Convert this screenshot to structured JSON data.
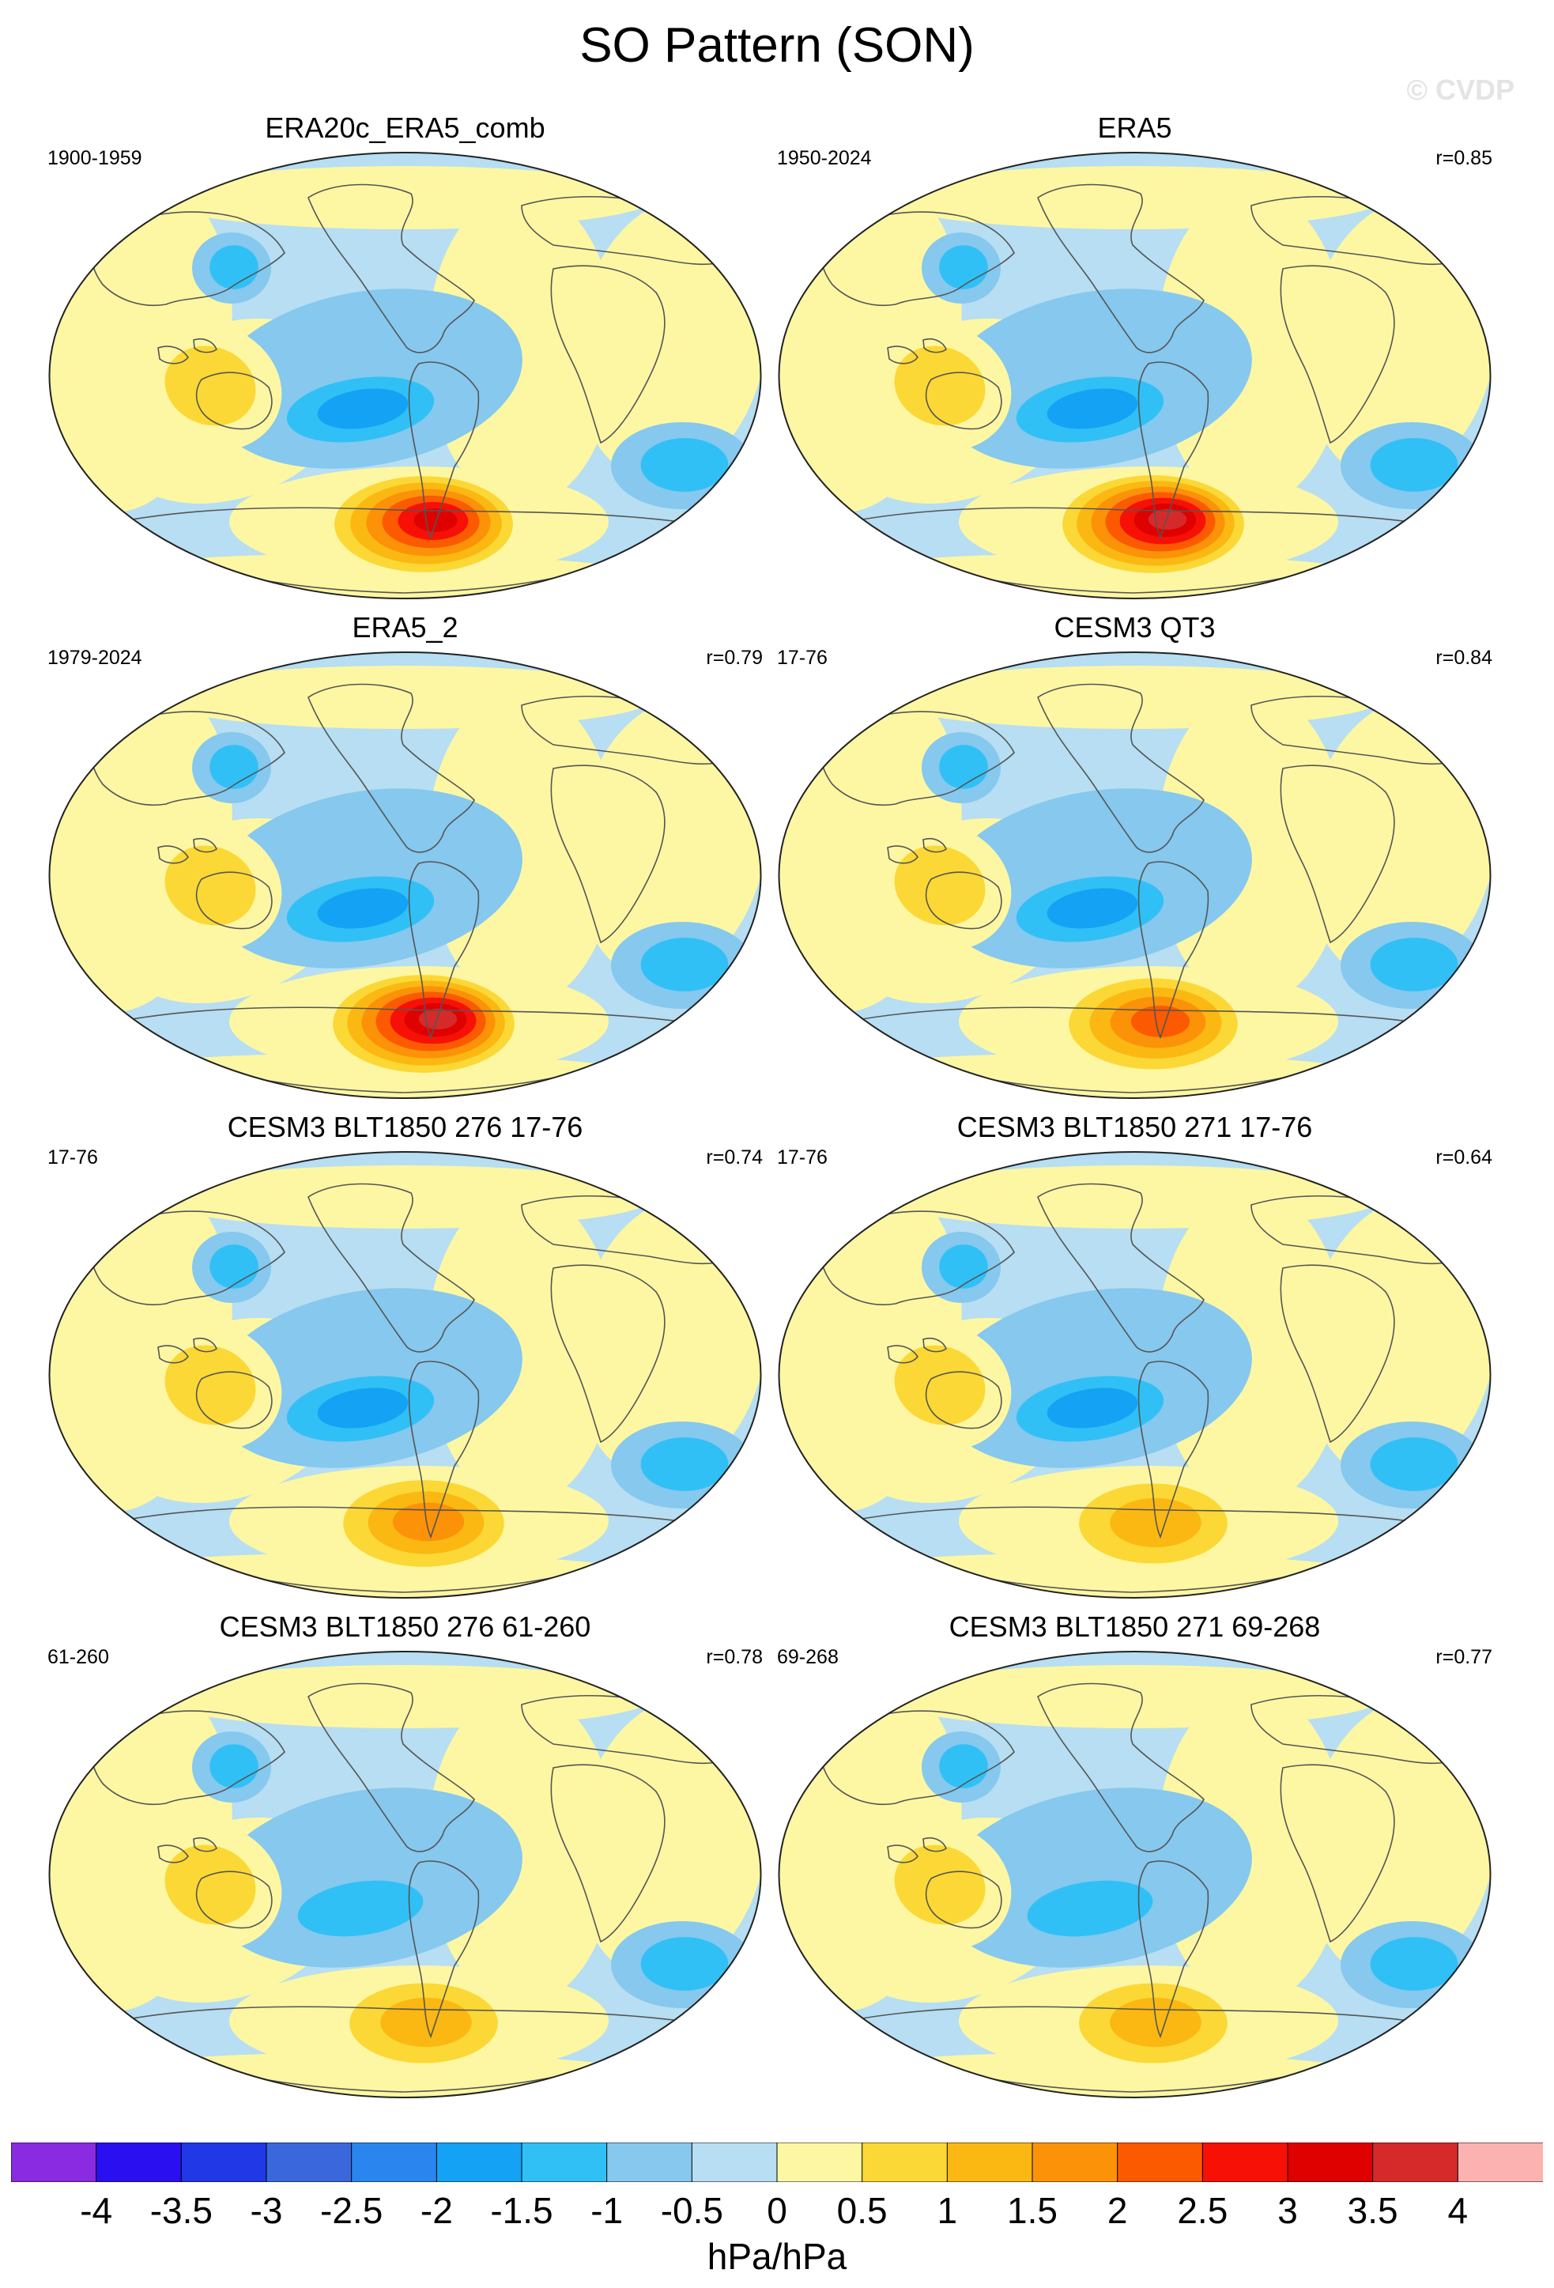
{
  "title": "SO Pattern (SON)",
  "watermark": "© CVDP",
  "palette": {
    "ocean_base": "#b7def2",
    "land_base": "#fdf7a3",
    "coast": "#555555",
    "outline": "#222222"
  },
  "panels": [
    {
      "title": "ERA20c_ERA5_comb",
      "years": "1900-1959",
      "r": "",
      "high_level": 7,
      "low_level": -4
    },
    {
      "title": "ERA5",
      "years": "1950-2024",
      "r": "r=0.85",
      "high_level": 8,
      "low_level": -4
    },
    {
      "title": "ERA5_2",
      "years": "1979-2024",
      "r": "r=0.79",
      "high_level": 8,
      "low_level": -4
    },
    {
      "title": "CESM3 QT3",
      "years": "17-76",
      "r": "r=0.84",
      "high_level": 5,
      "low_level": -4
    },
    {
      "title": "CESM3 BLT1850 276 17-76",
      "years": "17-76",
      "r": "r=0.74",
      "high_level": 4,
      "low_level": -4
    },
    {
      "title": "CESM3 BLT1850 271 17-76",
      "years": "17-76",
      "r": "r=0.64",
      "high_level": 3,
      "low_level": -4
    },
    {
      "title": "CESM3 BLT1850 276 61-260",
      "years": "61-260",
      "r": "r=0.78",
      "high_level": 3,
      "low_level": -3
    },
    {
      "title": "CESM3 BLT1850 271 69-268",
      "years": "69-268",
      "r": "r=0.77",
      "high_level": 3,
      "low_level": -3
    }
  ],
  "colorbar": {
    "units": "hPa/hPa",
    "labels": [
      "-4",
      "-3.5",
      "-3",
      "-2.5",
      "-2",
      "-1.5",
      "-1",
      "-0.5",
      "0",
      "0.5",
      "1",
      "1.5",
      "2",
      "2.5",
      "3",
      "3.5",
      "4"
    ],
    "colors": [
      "#8a2be2",
      "#2a10f0",
      "#2038e6",
      "#3a68dc",
      "#2a86ee",
      "#14a2f4",
      "#30c0f6",
      "#86c8ee",
      "#b7def2",
      "#fdf7a3",
      "#fbd835",
      "#fbb812",
      "#fb9208",
      "#fb5a00",
      "#f71006",
      "#df0000",
      "#d62a2a",
      "#fdb2b2"
    ]
  }
}
